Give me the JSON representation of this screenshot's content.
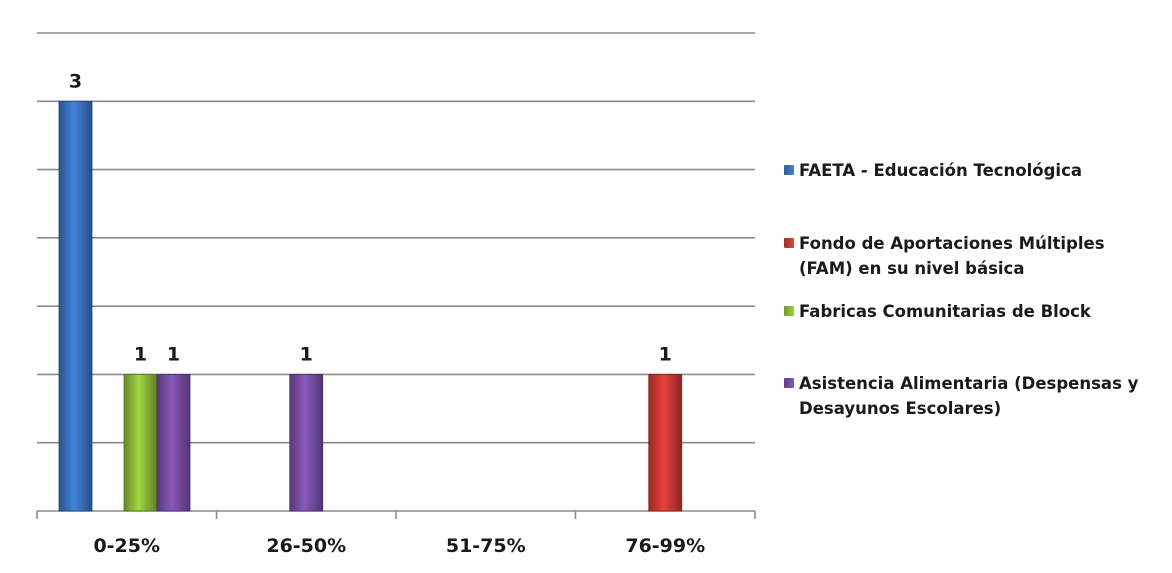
{
  "chart_data": {
    "type": "bar",
    "categories": [
      "0-25%",
      "26-50%",
      "51-75%",
      "76-99%"
    ],
    "series": [
      {
        "name": "FAETA - Educación Tecnológica",
        "color": "#3A75C4",
        "values": [
          3,
          0,
          0,
          0
        ]
      },
      {
        "name": "Fondo de Aportaciones Múltiples\n(FAM) en su nivel básica",
        "color": "#CF3A35",
        "values": [
          0,
          0,
          0,
          1
        ]
      },
      {
        "name": "Fabricas Comunitarias de Block",
        "color": "#90BE38",
        "values": [
          1,
          0,
          0,
          0
        ]
      },
      {
        "name": "Asistencia Alimentaria (Despensas y\nDesayunos Escolares)",
        "color": "#7A4FA8",
        "values": [
          1,
          1,
          0,
          0
        ]
      }
    ],
    "ylim": [
      0,
      3.5
    ],
    "grid": true,
    "legend_position": "right"
  }
}
